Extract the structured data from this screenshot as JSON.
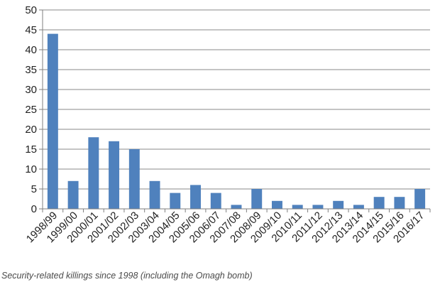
{
  "chart_data": {
    "type": "bar",
    "categories": [
      "1998/99",
      "1999/00",
      "2000/01",
      "2001/02",
      "2002/03",
      "2003/04",
      "2004/05",
      "2005/06",
      "2006/07",
      "2007/08",
      "2008/09",
      "2009/10",
      "2010/11",
      "2011/12",
      "2012/13",
      "2013/14",
      "2014/15",
      "2015/16",
      "2016/17"
    ],
    "values": [
      44,
      7,
      18,
      17,
      15,
      7,
      4,
      6,
      4,
      1,
      5,
      2,
      1,
      1,
      2,
      1,
      3,
      3,
      5
    ],
    "ylim": [
      0,
      50
    ],
    "yticks": [
      0,
      5,
      10,
      15,
      20,
      25,
      30,
      35,
      40,
      45,
      50
    ],
    "grid": true,
    "bar_color": "#4f81bd",
    "caption": "Security-related killings since 1998 (including the Omagh bomb)"
  }
}
